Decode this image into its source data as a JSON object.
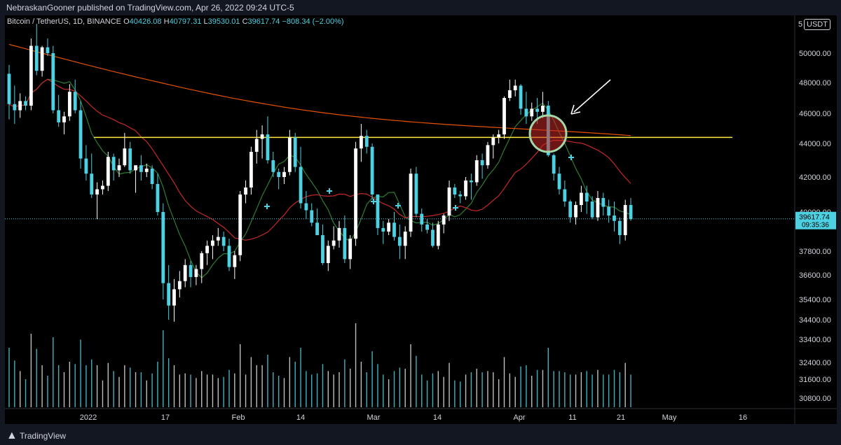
{
  "header": {
    "publisher": "NebraskanGooner published on TradingView.com, Apr 26, 2022 09:24 UTC-5"
  },
  "legend": {
    "symbol": "Bitcoin / TetherUS, 1D, BINANCE",
    "open_label": "O",
    "open": "40426.08",
    "high_label": "H",
    "high": "40797.31",
    "low_label": "L",
    "low": "39530.01",
    "close_label": "C",
    "close": "39617.74",
    "change": "−808.34 (−2.00%)"
  },
  "currency_badge": "USDT",
  "price_scale_top": "5",
  "footer": {
    "brand": "TradingView"
  },
  "chart_data": {
    "type": "candlestick",
    "price_axis_ticks": [
      "50000.00",
      "48000.00",
      "46000.00",
      "44000.00",
      "42000.00",
      "40000.00",
      "37800.00",
      "36600.00",
      "35400.00",
      "34400.00",
      "33400.00",
      "32400.00",
      "31600.00",
      "30800.00"
    ],
    "time_axis_ticks": [
      "2022",
      "17",
      "Feb",
      "14",
      "Mar",
      "14",
      "Apr",
      "11",
      "21",
      "May",
      "16"
    ],
    "last_price": "39617.74",
    "countdown": "09:35:36",
    "horizontal_line": {
      "price": 44400,
      "color": "#ffeb3b"
    },
    "current_price_line": {
      "price": 39617.74,
      "color": "#4dd0e1"
    },
    "colors": {
      "up": "#ffffff",
      "down": "#4dd0e1",
      "ma_fast": "#2e7d32",
      "ma_mid": "#c62828",
      "ma_slow": "#e65100",
      "circle_fill": "#c62828",
      "circle_stroke": "#a5d6a7"
    },
    "candles": [
      [
        48600,
        49200,
        45600,
        46600
      ],
      [
        46600,
        47800,
        45300,
        46200
      ],
      [
        46200,
        47300,
        45700,
        46800
      ],
      [
        46800,
        47100,
        46200,
        46500
      ],
      [
        46500,
        51000,
        46200,
        50500
      ],
      [
        50500,
        52000,
        48500,
        48800
      ],
      [
        48800,
        50500,
        48400,
        50400
      ],
      [
        50400,
        51000,
        49800,
        50000
      ],
      [
        50000,
        50500,
        46000,
        46200
      ],
      [
        46200,
        47200,
        45100,
        45400
      ],
      [
        45400,
        46100,
        44600,
        45800
      ],
      [
        45800,
        47900,
        45500,
        47400
      ],
      [
        47400,
        48200,
        46000,
        46200
      ],
      [
        46200,
        46800,
        42500,
        43100
      ],
      [
        43100,
        43900,
        41800,
        42200
      ],
      [
        42200,
        43400,
        40800,
        41000
      ],
      [
        41000,
        41700,
        39600,
        41300
      ],
      [
        41300,
        41800,
        41000,
        41500
      ],
      [
        41500,
        43500,
        41200,
        43200
      ],
      [
        43200,
        43400,
        41800,
        42400
      ],
      [
        42400,
        43100,
        42000,
        42700
      ],
      [
        42700,
        44700,
        42600,
        43700
      ],
      [
        43700,
        44100,
        42200,
        42400
      ],
      [
        42400,
        42600,
        41100,
        42700
      ],
      [
        42700,
        43300,
        41800,
        42300
      ],
      [
        42300,
        42800,
        42000,
        42500
      ],
      [
        42500,
        42700,
        41300,
        41600
      ],
      [
        41600,
        42200,
        39800,
        40000
      ],
      [
        40000,
        40500,
        35400,
        36200
      ],
      [
        36200,
        37100,
        34400,
        35100
      ],
      [
        35100,
        36400,
        34300,
        35900
      ],
      [
        35900,
        36800,
        35500,
        36300
      ],
      [
        36300,
        37400,
        36000,
        37100
      ],
      [
        37100,
        37300,
        36000,
        36500
      ],
      [
        36500,
        37100,
        36100,
        36900
      ],
      [
        36900,
        37800,
        36200,
        37700
      ],
      [
        37700,
        38400,
        37100,
        38100
      ],
      [
        38100,
        38700,
        37400,
        38400
      ],
      [
        38400,
        39100,
        38100,
        38600
      ],
      [
        38600,
        38900,
        37800,
        38100
      ],
      [
        38100,
        38500,
        36800,
        37000
      ],
      [
        37000,
        37800,
        36400,
        37600
      ],
      [
        37600,
        41200,
        37300,
        41000
      ],
      [
        41000,
        41800,
        40500,
        41400
      ],
      [
        41400,
        43800,
        41000,
        43500
      ],
      [
        43500,
        44900,
        42800,
        44300
      ],
      [
        44300,
        45200,
        43100,
        44600
      ],
      [
        44600,
        45800,
        42800,
        43000
      ],
      [
        43000,
        43500,
        42000,
        42300
      ],
      [
        42300,
        42500,
        41300,
        42000
      ],
      [
        42000,
        42600,
        41600,
        42300
      ],
      [
        42300,
        44900,
        42100,
        44400
      ],
      [
        44400,
        44700,
        42300,
        42600
      ],
      [
        42600,
        43800,
        40200,
        40500
      ],
      [
        40500,
        41200,
        39600,
        40100
      ],
      [
        40100,
        40500,
        39200,
        39400
      ],
      [
        39400,
        40200,
        38800,
        38700
      ],
      [
        38700,
        39300,
        37100,
        37200
      ],
      [
        37200,
        38400,
        36800,
        38100
      ],
      [
        38100,
        39200,
        37900,
        38400
      ],
      [
        38400,
        39500,
        38000,
        39100
      ],
      [
        39100,
        39800,
        37200,
        37400
      ],
      [
        37400,
        38700,
        36900,
        38500
      ],
      [
        38500,
        44100,
        38100,
        43700
      ],
      [
        43700,
        45300,
        42900,
        44500
      ],
      [
        44500,
        44900,
        43400,
        43800
      ],
      [
        43800,
        44000,
        40700,
        41000
      ],
      [
        41000,
        40900,
        38700,
        39100
      ],
      [
        39100,
        39500,
        38200,
        38900
      ],
      [
        38900,
        39600,
        38700,
        39400
      ],
      [
        39400,
        40000,
        38400,
        38600
      ],
      [
        38600,
        39300,
        37400,
        38100
      ],
      [
        38100,
        39200,
        37400,
        38900
      ],
      [
        38900,
        42500,
        38600,
        42200
      ],
      [
        42200,
        42600,
        39700,
        39900
      ],
      [
        39900,
        40200,
        38900,
        39300
      ],
      [
        39300,
        39600,
        38800,
        39000
      ],
      [
        39000,
        39400,
        38000,
        38100
      ],
      [
        38100,
        39500,
        37900,
        39300
      ],
      [
        39300,
        39900,
        38800,
        39800
      ],
      [
        39800,
        41800,
        39500,
        41400
      ],
      [
        41400,
        41600,
        40800,
        41000
      ],
      [
        41000,
        41200,
        40500,
        40900
      ],
      [
        40900,
        42000,
        40700,
        41800
      ],
      [
        41800,
        42200,
        40700,
        41700
      ],
      [
        41700,
        43300,
        41500,
        43000
      ],
      [
        43000,
        43400,
        41900,
        42700
      ],
      [
        42700,
        44100,
        42500,
        43900
      ],
      [
        43900,
        44600,
        43100,
        44400
      ],
      [
        44400,
        44900,
        44000,
        44600
      ],
      [
        44600,
        47100,
        44300,
        47000
      ],
      [
        47000,
        48200,
        46800,
        47500
      ],
      [
        47500,
        48200,
        47100,
        47800
      ],
      [
        47800,
        47900,
        45900,
        46300
      ],
      [
        46300,
        47400,
        45300,
        45800
      ],
      [
        45800,
        46700,
        45500,
        46300
      ],
      [
        46300,
        47000,
        45300,
        46100
      ],
      [
        46100,
        47400,
        45700,
        46500
      ],
      [
        46500,
        46800,
        43200,
        43300
      ],
      [
        43300,
        43400,
        41800,
        42200
      ],
      [
        42200,
        42600,
        41000,
        41300
      ],
      [
        41300,
        41800,
        40300,
        40600
      ],
      [
        40600,
        40700,
        39400,
        39700
      ],
      [
        39700,
        40600,
        39300,
        40400
      ],
      [
        40400,
        41500,
        40000,
        41100
      ],
      [
        41100,
        41500,
        39900,
        40600
      ],
      [
        40600,
        40900,
        39600,
        39700
      ],
      [
        39700,
        41200,
        39500,
        40800
      ],
      [
        40800,
        41100,
        39800,
        40300
      ],
      [
        40300,
        40700,
        39400,
        39800
      ],
      [
        39800,
        40600,
        38900,
        39500
      ],
      [
        39500,
        39700,
        38200,
        38700
      ],
      [
        38700,
        40700,
        38400,
        40400
      ],
      [
        40400,
        40800,
        39500,
        39600
      ]
    ]
  }
}
